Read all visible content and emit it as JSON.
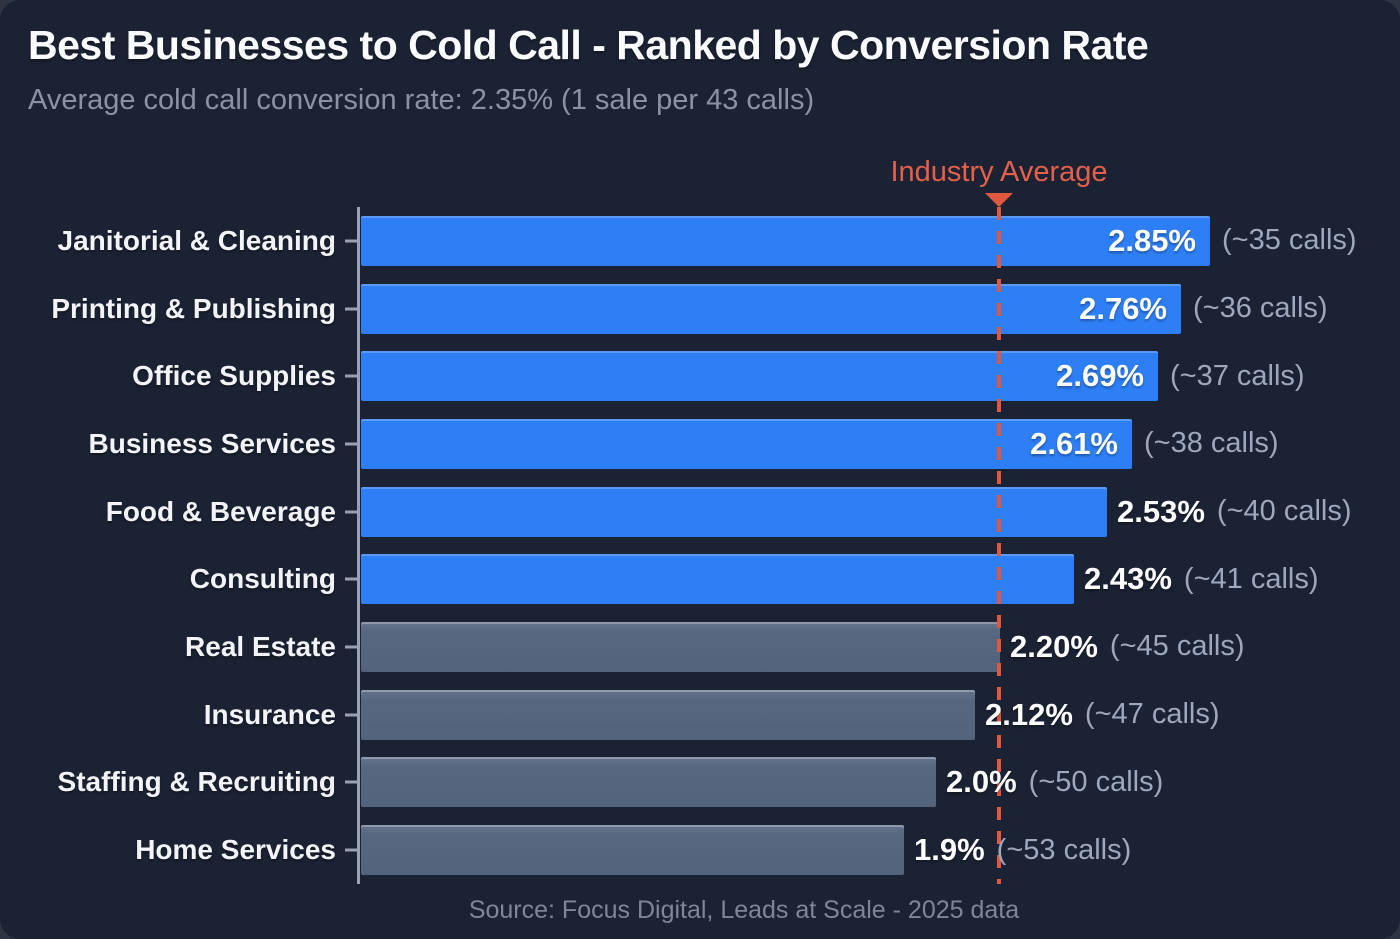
{
  "chart_data": {
    "type": "bar",
    "orientation": "horizontal",
    "title": "Best Businesses to Cold Call - Ranked by Conversion Rate",
    "subtitle": "Average cold call conversion rate: 2.35% (1 sale per 43 calls)",
    "source": "Source: Focus Digital, Leads at Scale - 2025 data",
    "xlabel": "",
    "ylabel": "",
    "xlim": [
      0,
      3.2
    ],
    "grid": false,
    "legend": false,
    "categories": [
      "Janitorial & Cleaning",
      "Printing & Publishing",
      "Office Supplies",
      "Business Services",
      "Food & Beverage",
      "Consulting",
      "Real Estate",
      "Insurance",
      "Staffing & Recruiting",
      "Home Services"
    ],
    "series": [
      {
        "name": "Cold call conversion rate (%)",
        "values": [
          2.85,
          2.76,
          2.69,
          2.61,
          2.53,
          2.43,
          2.2,
          2.12,
          2.0,
          1.9
        ]
      }
    ],
    "value_labels": [
      "2.85%",
      "2.76%",
      "2.69%",
      "2.61%",
      "2.53%",
      "2.43%",
      "2.20%",
      "2.12%",
      "2.0%",
      "1.9%"
    ],
    "calls_labels": [
      "(~35 calls)",
      "(~36 calls)",
      "(~37 calls)",
      "(~38 calls)",
      "(~40 calls)",
      "(~41 calls)",
      "(~45 calls)",
      "(~47 calls)",
      "(~50 calls)",
      "(~53 calls)"
    ],
    "above_average": [
      true,
      true,
      true,
      true,
      true,
      true,
      false,
      false,
      false,
      false
    ],
    "value_label_inside": [
      true,
      true,
      true,
      true,
      false,
      false,
      false,
      false,
      false,
      false
    ],
    "industry_average": {
      "label": "Industry Average",
      "value": 2.35
    }
  },
  "colors": {
    "background": "#1b2233",
    "outer_background": "#2e3443",
    "bar_above_average": "#2e7ef5",
    "bar_below_average": "#57677f",
    "industry_average_accent": "#e2583e",
    "title_text": "#fafbfd",
    "subtitle_text": "#8a92a6",
    "value_text": "#ffffff",
    "calls_text": "#9ea8bc",
    "axis": "#99a1b2",
    "source_text": "#7e8798"
  }
}
